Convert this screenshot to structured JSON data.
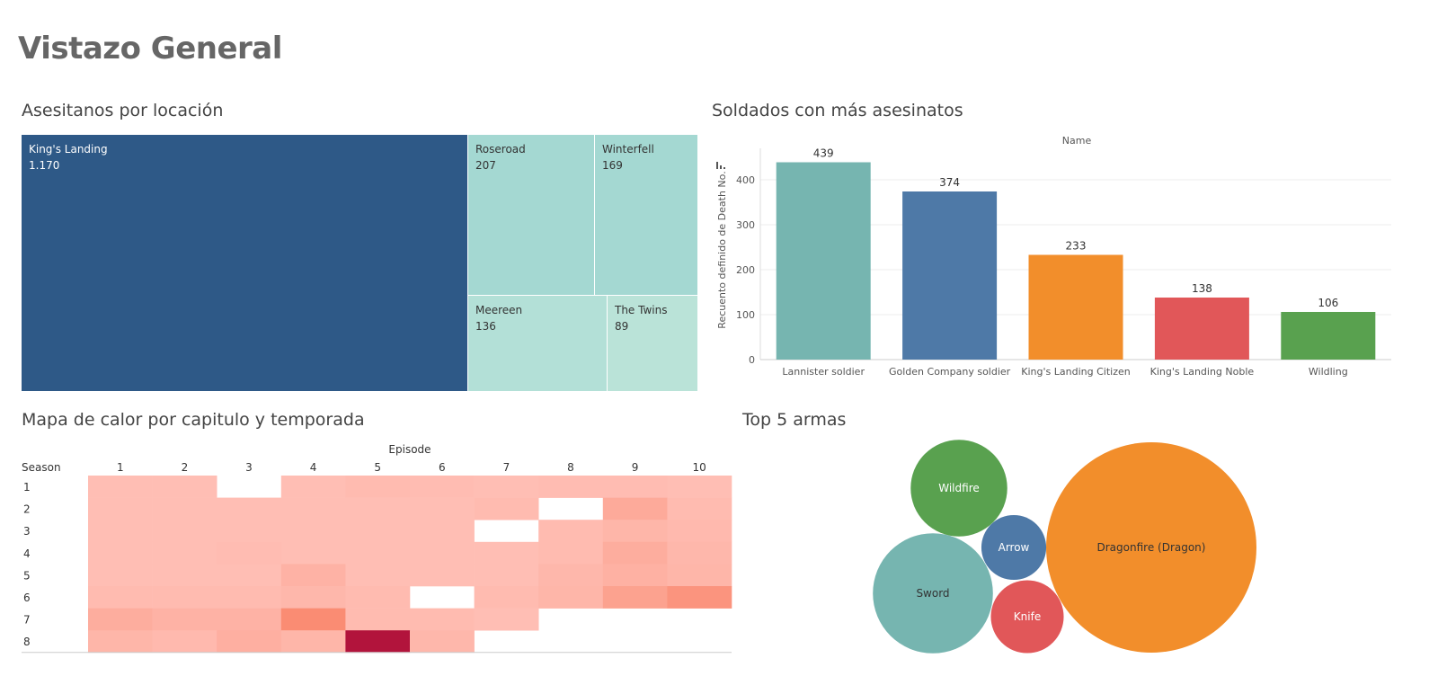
{
  "page": {
    "title": "Vistazo General"
  },
  "treemap": {
    "title": "Asesitanos por locación",
    "items": [
      {
        "name": "King's Landing",
        "value_label": "1.170",
        "value": 1170,
        "color": "#2e5987",
        "text_color": "#ffffff"
      },
      {
        "name": "Roseroad",
        "value_label": "207",
        "value": 207,
        "color": "#a4d8d2",
        "text_color": "#333333"
      },
      {
        "name": "Winterfell",
        "value_label": "169",
        "value": 169,
        "color": "#a4d8d2",
        "text_color": "#333333"
      },
      {
        "name": "Meereen",
        "value_label": "136",
        "value": 136,
        "color": "#b3e0d7",
        "text_color": "#333333"
      },
      {
        "name": "The Twins",
        "value_label": "89",
        "value": 89,
        "color": "#bae3d8",
        "text_color": "#333333"
      }
    ]
  },
  "bar_chart": {
    "title": "Soldados con más asesinatos",
    "header": "Name",
    "ylabel": "Recuento definido de Death No.",
    "chart_data": {
      "type": "bar",
      "categories": [
        "Lannister soldier",
        "Golden Company soldier",
        "King's Landing Citizen",
        "King's Landing Noble",
        "Wildling"
      ],
      "values": [
        439,
        374,
        233,
        138,
        106
      ],
      "colors": [
        "#76b5b0",
        "#4e79a7",
        "#f28e2b",
        "#e15759",
        "#59a14f"
      ],
      "yticks": [
        0,
        100,
        200,
        300,
        400
      ],
      "ylim": [
        0,
        470
      ]
    }
  },
  "heatmap": {
    "title": "Mapa de calor por capitulo y temporada",
    "column_header": "Episode",
    "row_header": "Season",
    "chart_data": {
      "type": "heatmap",
      "x": [
        "1",
        "2",
        "3",
        "4",
        "5",
        "6",
        "7",
        "8",
        "9",
        "10"
      ],
      "y": [
        "1",
        "2",
        "3",
        "4",
        "5",
        "6",
        "7",
        "8"
      ],
      "values": [
        [
          0.2,
          0.2,
          null,
          0.2,
          0.22,
          0.21,
          0.2,
          0.21,
          0.21,
          0.2
        ],
        [
          0.2,
          0.2,
          0.2,
          0.2,
          0.2,
          0.2,
          0.22,
          null,
          0.32,
          0.22
        ],
        [
          0.2,
          0.2,
          0.2,
          0.2,
          0.2,
          0.2,
          null,
          0.22,
          0.25,
          0.23
        ],
        [
          0.2,
          0.2,
          0.21,
          0.2,
          0.2,
          0.2,
          0.2,
          0.22,
          0.3,
          0.24
        ],
        [
          0.2,
          0.2,
          0.2,
          0.27,
          0.2,
          0.2,
          0.2,
          0.24,
          0.28,
          0.25
        ],
        [
          0.22,
          0.22,
          0.22,
          0.24,
          0.22,
          null,
          0.22,
          0.25,
          0.37,
          0.45
        ],
        [
          0.3,
          0.27,
          0.27,
          0.5,
          0.22,
          0.22,
          0.2,
          null,
          null,
          null
        ],
        [
          0.25,
          0.23,
          0.29,
          0.25,
          1.0,
          0.24,
          null,
          null,
          null,
          null
        ]
      ]
    }
  },
  "bubbles": {
    "title": "Top 5 armas",
    "chart_data": {
      "type": "bubble",
      "items": [
        {
          "name": "Dragonfire (Dragon)",
          "color": "#f28e2b",
          "text_color": "#333333",
          "size": 1.0
        },
        {
          "name": "Sword",
          "color": "#76b5b0",
          "text_color": "#333333",
          "size": 0.326
        },
        {
          "name": "Wildfire",
          "color": "#59a14f",
          "text_color": "#ffffff",
          "size": 0.211
        },
        {
          "name": "Knife",
          "color": "#e15759",
          "text_color": "#ffffff",
          "size": 0.12
        },
        {
          "name": "Arrow",
          "color": "#4e79a7",
          "text_color": "#ffffff",
          "size": 0.095
        }
      ]
    }
  }
}
